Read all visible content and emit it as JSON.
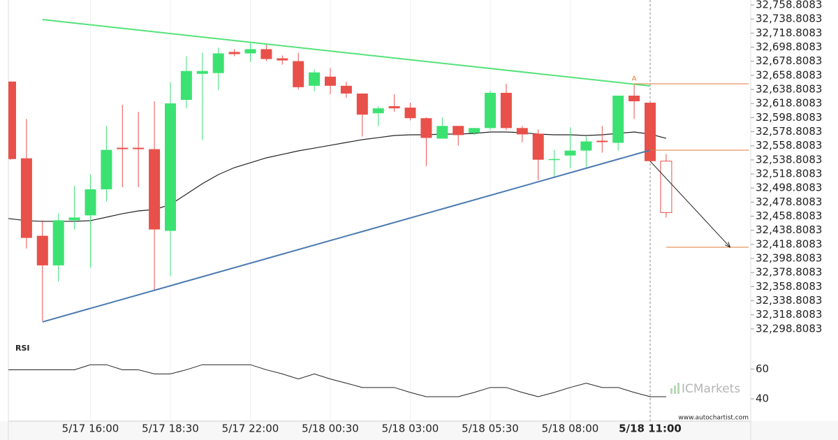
{
  "chart_data": [
    {
      "type": "candlestick",
      "categories": [
        null,
        null,
        null,
        null,
        null,
        "5/17 16:00",
        null,
        null,
        null,
        null,
        "5/17 18:30",
        null,
        null,
        null,
        null,
        "5/17 22:00",
        null,
        null,
        null,
        null,
        "5/18 00:30",
        null,
        null,
        null,
        null,
        "5/18 03:00",
        null,
        null,
        null,
        null,
        "5/18 05:30",
        null,
        null,
        null,
        null,
        "5/18 08:00",
        null,
        null,
        null,
        null,
        "5/18 11:00",
        null
      ],
      "open": [
        32650,
        32541,
        32431,
        32389,
        32453,
        32460,
        32497,
        32556,
        32556,
        32554,
        32438,
        32624,
        32661,
        32662,
        32692,
        32690,
        32696,
        32683,
        32679,
        32644,
        32657,
        32644,
        32633,
        32605,
        32615,
        32613,
        32598,
        32569,
        32587,
        32577,
        32584,
        32634,
        32584,
        32576,
        32539,
        32545,
        32552,
        32566,
        32563,
        32630,
        32620,
        32537
      ],
      "high": [
        32650,
        32597,
        32453,
        32463,
        32502,
        32518,
        32587,
        32617,
        32607,
        32622,
        32649,
        32686,
        32691,
        32698,
        32696,
        32706,
        32704,
        32687,
        32691,
        32667,
        32669,
        32650,
        32633,
        32615,
        32632,
        32620,
        32599,
        32599,
        32587,
        32584,
        32637,
        32647,
        32587,
        32582,
        32553,
        32585,
        32572,
        32587,
        32630,
        32647,
        32620,
        32547
      ],
      "low": [
        32539,
        32413,
        32310,
        32366,
        32440,
        32386,
        32480,
        32500,
        32500,
        32354,
        32374,
        32612,
        32567,
        32638,
        32686,
        32678,
        32679,
        32674,
        32639,
        32636,
        32632,
        32627,
        32572,
        32587,
        32607,
        32595,
        32530,
        32569,
        32559,
        32574,
        32581,
        32581,
        32564,
        32510,
        32515,
        32527,
        32527,
        32549,
        32552,
        32597,
        32537,
        32457
      ],
      "close": [
        32540,
        32428,
        32389,
        32453,
        32457,
        32497,
        32553,
        32554,
        32554,
        32440,
        32619,
        32665,
        32665,
        32690,
        32689,
        32696,
        32682,
        32680,
        32642,
        32663,
        32644,
        32633,
        32603,
        32612,
        32612,
        32598,
        32570,
        32587,
        32574,
        32584,
        32634,
        32584,
        32575,
        32539,
        32540,
        32552,
        32565,
        32564,
        32630,
        32622,
        32537,
        32464
      ],
      "up_color": "#3be272",
      "down_color": "#e8504a",
      "last_candle_hollow": true,
      "moving_average": {
        "color": "#222222",
        "values": [
          32455.5,
          32452.5,
          32451.5,
          32451.5,
          32451.5,
          32452.5,
          32457.4,
          32462.4,
          32466.3,
          32468.3,
          32475.3,
          32490.1,
          32505,
          32517.9,
          32527.8,
          32534.7,
          32541.7,
          32546.6,
          32551.6,
          32555.5,
          32559.5,
          32563.5,
          32567.5,
          32570.4,
          32573.4,
          32574.4,
          32574.4,
          32575.4,
          32575.4,
          32576.4,
          32578.4,
          32578.4,
          32577.4,
          32575.4,
          32574.4,
          32574.4,
          32573.4,
          32574.4,
          32576.4,
          32578.4,
          32575.4,
          32569.4
        ]
      },
      "trend_lines": [
        {
          "color": "#55e27a",
          "x": [
            2,
            40
          ],
          "values": [
            32738,
            32643.8
          ]
        },
        {
          "color": "#4a79b0",
          "x": [
            2,
            40
          ],
          "values": [
            32308.7,
            32552.6
          ]
        }
      ],
      "levels": [
        {
          "color": "#e07b39",
          "from": 39,
          "value": 32646.8
        },
        {
          "color": "#e07b39",
          "from": 40,
          "value": 32552.6
        },
        {
          "color": "#e07b39",
          "from": 41,
          "value": 32414.8
        }
      ],
      "forecast": {
        "color": "#222222",
        "x": [
          40,
          45
        ],
        "values": [
          32537,
          32414.8
        ]
      },
      "marker": {
        "text": "A",
        "x": 39,
        "value": 32654,
        "color": "#e07b39"
      },
      "current_index": 40,
      "ylim": [
        32288.8083,
        32765.8083
      ],
      "yticks": [
        {
          "value": 32758.8083,
          "label": "32,758.8083"
        },
        {
          "value": 32738.8083,
          "label": "32,738.8083"
        },
        {
          "value": 32718.8083,
          "label": "32,718.8083"
        },
        {
          "value": 32698.8083,
          "label": "32,698.8083"
        },
        {
          "value": 32678.8083,
          "label": "32,678.8083"
        },
        {
          "value": 32658.8083,
          "label": "32,658.8083"
        },
        {
          "value": 32638.8083,
          "label": "32,638.8083"
        },
        {
          "value": 32618.8083,
          "label": "32,618.8083"
        },
        {
          "value": 32598.8083,
          "label": "32,598.8083"
        },
        {
          "value": 32578.8083,
          "label": "32,578.8083"
        },
        {
          "value": 32558.8083,
          "label": "32,558.8083"
        },
        {
          "value": 32538.8083,
          "label": "32,538.8083"
        },
        {
          "value": 32518.8083,
          "label": "32,518.8083"
        },
        {
          "value": 32498.8083,
          "label": "32,498.8083"
        },
        {
          "value": 32478.8083,
          "label": "32,478.8083"
        },
        {
          "value": 32458.8083,
          "label": "32,458.8083"
        },
        {
          "value": 32438.8083,
          "label": "32,438.8083"
        },
        {
          "value": 32418.8083,
          "label": "32,418.8083"
        },
        {
          "value": 32398.8083,
          "label": "32,398.8083"
        },
        {
          "value": 32378.8083,
          "label": "32,378.8083"
        },
        {
          "value": 32358.8083,
          "label": "32,358.8083"
        },
        {
          "value": 32338.8083,
          "label": "32,338.8083"
        },
        {
          "value": 32318.8083,
          "label": "32,318.8083"
        },
        {
          "value": 32298.8083,
          "label": "32,298.8083"
        }
      ]
    },
    {
      "type": "line",
      "title": "RSI",
      "color": "#222222",
      "values": [
        59.5,
        59.5,
        59.5,
        59.5,
        59.5,
        62.9,
        62.9,
        59.5,
        59.5,
        56.7,
        56.7,
        59.5,
        62.9,
        62.9,
        62.9,
        62.9,
        59.5,
        56.7,
        53.3,
        56.7,
        53.3,
        50.5,
        47.6,
        47.6,
        47.6,
        44.3,
        41.4,
        41.4,
        41.4,
        44.3,
        47.6,
        47.6,
        44.3,
        41.4,
        44.3,
        47.6,
        50.5,
        47.6,
        47.6,
        44.3,
        41.4,
        41.4
      ],
      "ylim": [
        25,
        78
      ],
      "yticks": [
        60,
        40
      ]
    }
  ],
  "watermark": "ICMarkets",
  "source": "www.autochartist.com"
}
